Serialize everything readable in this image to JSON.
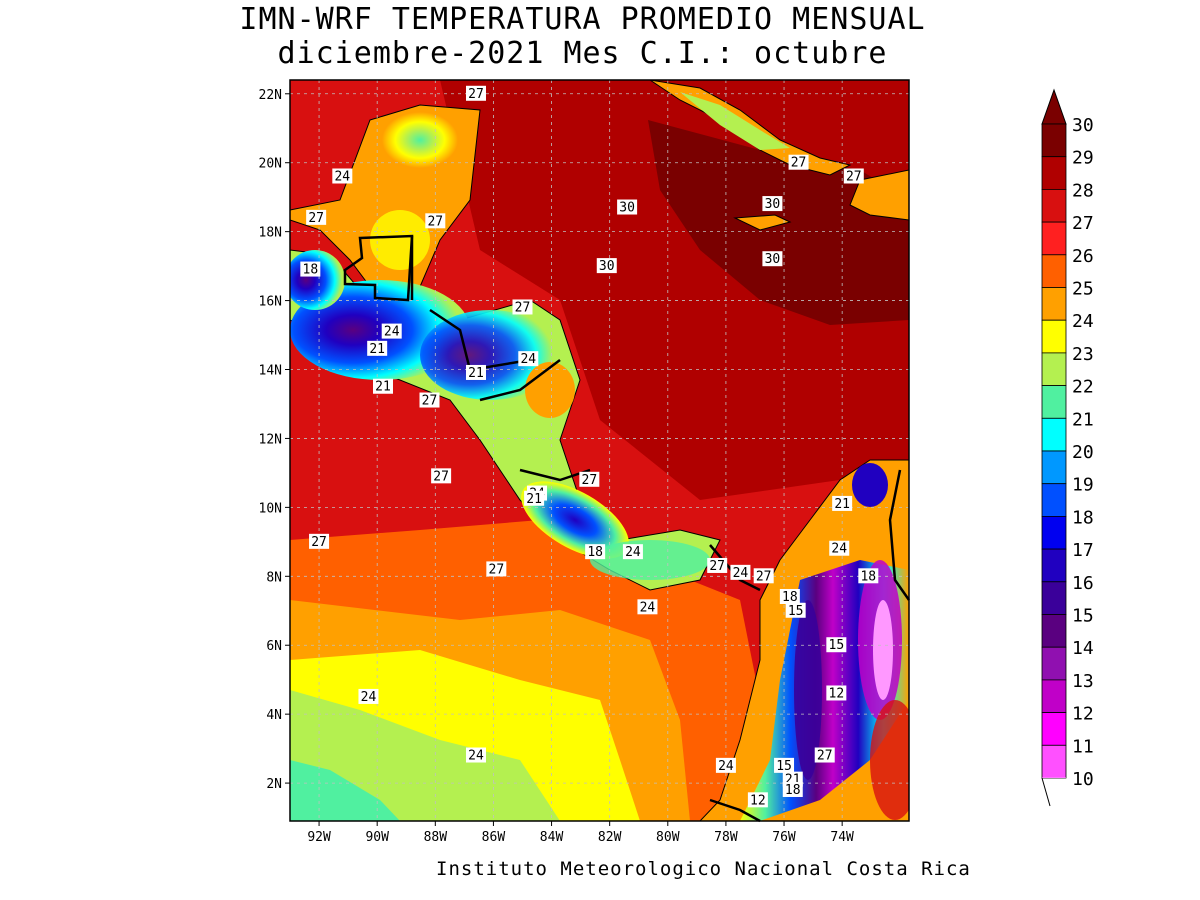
{
  "title": {
    "line1": "IMN-WRF  TEMPERATURA PROMEDIO MENSUAL",
    "line2": "diciembre-2021 Mes C.I.: octubre"
  },
  "footer": "Instituto Meteorologico Nacional Costa Rica",
  "map": {
    "lon_range": [
      -93.0,
      -71.7
    ],
    "lat_range": [
      0.9,
      22.4
    ],
    "lat_ticks": [
      {
        "value": 22,
        "label": "22N"
      },
      {
        "value": 20,
        "label": "20N"
      },
      {
        "value": 18,
        "label": "18N"
      },
      {
        "value": 16,
        "label": "16N"
      },
      {
        "value": 14,
        "label": "14N"
      },
      {
        "value": 12,
        "label": "12N"
      },
      {
        "value": 10,
        "label": "10N"
      },
      {
        "value": 8,
        "label": "8N"
      },
      {
        "value": 6,
        "label": "6N"
      },
      {
        "value": 4,
        "label": "4N"
      },
      {
        "value": 2,
        "label": "2N"
      }
    ],
    "lon_ticks": [
      {
        "value": -92,
        "label": "92W"
      },
      {
        "value": -90,
        "label": "90W"
      },
      {
        "value": -88,
        "label": "88W"
      },
      {
        "value": -86,
        "label": "86W"
      },
      {
        "value": -84,
        "label": "84W"
      },
      {
        "value": -82,
        "label": "82W"
      },
      {
        "value": -80,
        "label": "80W"
      },
      {
        "value": -78,
        "label": "78W"
      },
      {
        "value": -76,
        "label": "76W"
      },
      {
        "value": -74,
        "label": "74W"
      }
    ],
    "contour_labels": [
      {
        "lon": -86.6,
        "lat": 22.0,
        "text": "27"
      },
      {
        "lon": -75.5,
        "lat": 20.0,
        "text": "27"
      },
      {
        "lon": -73.6,
        "lat": 19.6,
        "text": "27"
      },
      {
        "lon": -91.2,
        "lat": 19.6,
        "text": "24"
      },
      {
        "lon": -92.1,
        "lat": 18.4,
        "text": "27"
      },
      {
        "lon": -88.0,
        "lat": 18.3,
        "text": "27"
      },
      {
        "lon": -81.4,
        "lat": 18.7,
        "text": "30"
      },
      {
        "lon": -76.4,
        "lat": 18.8,
        "text": "30"
      },
      {
        "lon": -82.1,
        "lat": 17.0,
        "text": "30"
      },
      {
        "lon": -76.4,
        "lat": 17.2,
        "text": "30"
      },
      {
        "lon": -92.3,
        "lat": 16.9,
        "text": "18"
      },
      {
        "lon": -85.0,
        "lat": 15.8,
        "text": "27"
      },
      {
        "lon": -89.5,
        "lat": 15.1,
        "text": "24"
      },
      {
        "lon": -90.0,
        "lat": 14.6,
        "text": "21"
      },
      {
        "lon": -84.8,
        "lat": 14.3,
        "text": "24"
      },
      {
        "lon": -86.6,
        "lat": 13.9,
        "text": "21"
      },
      {
        "lon": -89.8,
        "lat": 13.5,
        "text": "21"
      },
      {
        "lon": -88.2,
        "lat": 13.1,
        "text": "27"
      },
      {
        "lon": -87.8,
        "lat": 10.9,
        "text": "27"
      },
      {
        "lon": -82.7,
        "lat": 10.8,
        "text": "27"
      },
      {
        "lon": -84.5,
        "lat": 10.4,
        "text": "24"
      },
      {
        "lon": -84.6,
        "lat": 10.25,
        "text": "21"
      },
      {
        "lon": -92.0,
        "lat": 9.0,
        "text": "27"
      },
      {
        "lon": -82.5,
        "lat": 8.7,
        "text": "18"
      },
      {
        "lon": -81.2,
        "lat": 8.7,
        "text": "24"
      },
      {
        "lon": -85.9,
        "lat": 8.2,
        "text": "27"
      },
      {
        "lon": -78.3,
        "lat": 8.3,
        "text": "27"
      },
      {
        "lon": -77.5,
        "lat": 8.1,
        "text": "24"
      },
      {
        "lon": -76.7,
        "lat": 8.0,
        "text": "27"
      },
      {
        "lon": -73.1,
        "lat": 8.0,
        "text": "18"
      },
      {
        "lon": -74.0,
        "lat": 10.1,
        "text": "21"
      },
      {
        "lon": -74.1,
        "lat": 8.8,
        "text": "24"
      },
      {
        "lon": -75.8,
        "lat": 7.4,
        "text": "18"
      },
      {
        "lon": -75.6,
        "lat": 7.0,
        "text": "15"
      },
      {
        "lon": -80.7,
        "lat": 7.1,
        "text": "24"
      },
      {
        "lon": -74.2,
        "lat": 6.0,
        "text": "15"
      },
      {
        "lon": -74.2,
        "lat": 4.6,
        "text": "12"
      },
      {
        "lon": -90.3,
        "lat": 4.5,
        "text": "24"
      },
      {
        "lon": -86.6,
        "lat": 2.8,
        "text": "24"
      },
      {
        "lon": -78.0,
        "lat": 2.5,
        "text": "24"
      },
      {
        "lon": -76.0,
        "lat": 2.5,
        "text": "15"
      },
      {
        "lon": -75.7,
        "lat": 2.1,
        "text": "21"
      },
      {
        "lon": -74.6,
        "lat": 2.8,
        "text": "27"
      },
      {
        "lon": -75.7,
        "lat": 1.8,
        "text": "18"
      },
      {
        "lon": -76.9,
        "lat": 1.5,
        "text": "12"
      }
    ]
  },
  "colorbar": {
    "levels": [
      {
        "value": 30,
        "label": "30",
        "color": "#7a0000"
      },
      {
        "value": 29,
        "label": "29",
        "color": "#b00000"
      },
      {
        "value": 28,
        "label": "28",
        "color": "#d81010"
      },
      {
        "value": 27,
        "label": "27",
        "color": "#ff2020"
      },
      {
        "value": 26,
        "label": "26",
        "color": "#ff6000"
      },
      {
        "value": 25,
        "label": "25",
        "color": "#ffa000"
      },
      {
        "value": 24,
        "label": "24",
        "color": "#ffff00"
      },
      {
        "value": 23,
        "label": "23",
        "color": "#b4f050"
      },
      {
        "value": 22,
        "label": "22",
        "color": "#50f0a0"
      },
      {
        "value": 21,
        "label": "21",
        "color": "#00ffff"
      },
      {
        "value": 20,
        "label": "20",
        "color": "#0098ff"
      },
      {
        "value": 19,
        "label": "19",
        "color": "#0050ff"
      },
      {
        "value": 18,
        "label": "18",
        "color": "#0000f0"
      },
      {
        "value": 17,
        "label": "17",
        "color": "#2000c0"
      },
      {
        "value": 16,
        "label": "16",
        "color": "#3a009a"
      },
      {
        "value": 15,
        "label": "15",
        "color": "#5a0080"
      },
      {
        "value": 14,
        "label": "14",
        "color": "#9010b0"
      },
      {
        "value": 13,
        "label": "13",
        "color": "#c000c8"
      },
      {
        "value": 12,
        "label": "12",
        "color": "#ff00ff"
      },
      {
        "value": 11,
        "label": "11",
        "color": "#ff50ff"
      },
      {
        "value": 10,
        "label": "10",
        "color": "#ff98ff"
      }
    ],
    "extend_color": "#7a0000"
  }
}
